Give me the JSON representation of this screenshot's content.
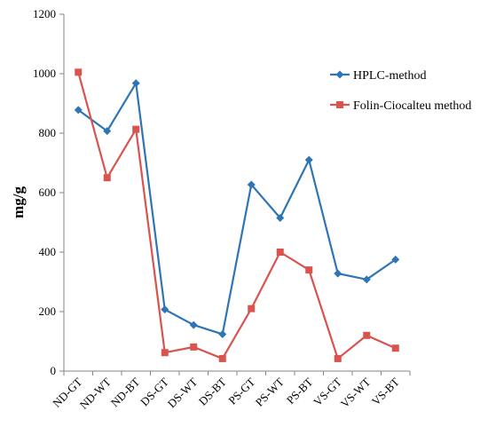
{
  "chart_data": {
    "type": "line",
    "categories": [
      "ND-GT",
      "ND-WT",
      "ND-BT",
      "DS-GT",
      "DS-WT",
      "DS-BT",
      "PS-GT",
      "PS-WT",
      "PS-BT",
      "VS-GT",
      "VS-WT",
      "VS-BT"
    ],
    "series": [
      {
        "name": "HPLC-method",
        "color": "#2e75b6",
        "marker": "diamond",
        "values": [
          878,
          807,
          968,
          207,
          155,
          124,
          627,
          515,
          710,
          328,
          308,
          375
        ]
      },
      {
        "name": "Folin-Ciocalteu method",
        "color": "#d9534f",
        "marker": "square",
        "values": [
          1005,
          650,
          813,
          62,
          81,
          42,
          210,
          400,
          340,
          42,
          120,
          77
        ]
      }
    ],
    "title": "",
    "xlabel": "",
    "ylabel": "mg/g",
    "ylim": [
      0,
      1200
    ],
    "yticks": [
      0,
      200,
      400,
      600,
      800,
      1000,
      1200
    ],
    "grid": false,
    "legend_position": "right"
  }
}
